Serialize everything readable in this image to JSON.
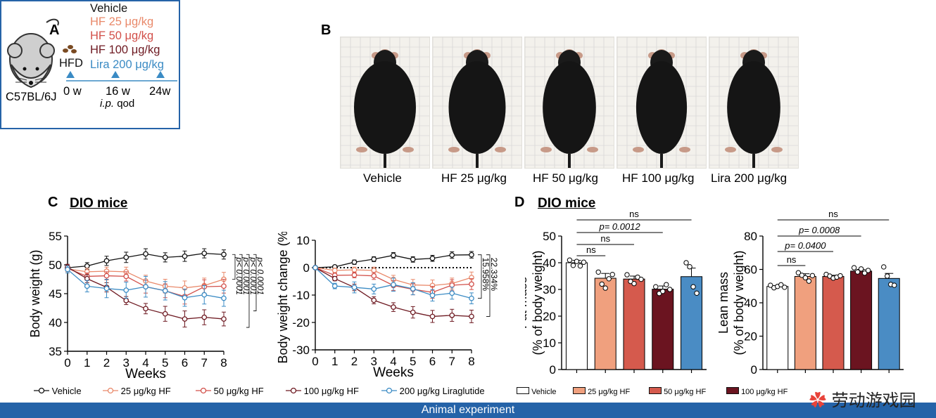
{
  "panels": {
    "A": "A",
    "B": "B",
    "C": "C",
    "D": "D"
  },
  "panel_a": {
    "strain": "C57BL/6J",
    "diet": "HFD",
    "groups": [
      {
        "label": "Vehicle",
        "color": "#111111"
      },
      {
        "label": "HF 25 μg/kg",
        "color": "#e9896a"
      },
      {
        "label": "HF 50 μg/kg",
        "color": "#d2504a"
      },
      {
        "label": "HF 100 μg/kg",
        "color": "#6e1a22"
      },
      {
        "label": "Lira 200 μg/kg",
        "color": "#3b8bc4"
      }
    ],
    "timeline": {
      "t0": "0 w",
      "t1": "16 w",
      "t2": "24w",
      "route": "i.p.",
      "freq": "qod"
    },
    "banner": "Animal experiment"
  },
  "panel_b": {
    "labels": [
      "Vehicle",
      "HF 25 μg/kg",
      "HF 50 μg/kg",
      "HF 100 μg/kg",
      "Lira 200 μg/kg"
    ]
  },
  "panel_c": {
    "title": "DIO mice"
  },
  "panel_d": {
    "title": "DIO mice"
  },
  "legend_c": [
    "Vehicle",
    "25 μg/kg HF",
    "50 μg/kg HF",
    "100 μg/kg HF",
    "200 μg/kg Liraglutide"
  ],
  "legend_d": [
    "Vehicle",
    "25 μg/kg HF",
    "50 μg/kg HF",
    "100 μg/kg HF"
  ],
  "colors": {
    "vehicle": "#111111",
    "hf25": "#e9896a",
    "hf50": "#d2504a",
    "hf100": "#6e1a22",
    "lira": "#3b8bc4",
    "bar25": "#f0a07e",
    "bar50": "#d55a4d",
    "bar100": "#6b1420",
    "barlira": "#4a8cc4"
  },
  "watermark": "劳动游戏园",
  "chart_data": [
    {
      "type": "line",
      "xlabel": "Weeks",
      "ylabel": "Body weight (g)",
      "x": [
        0,
        1,
        2,
        3,
        4,
        5,
        6,
        7,
        8
      ],
      "xlim": [
        0,
        8
      ],
      "ylim": [
        35,
        55
      ],
      "yticks": [
        35,
        40,
        45,
        50,
        55
      ],
      "series": [
        {
          "name": "Vehicle",
          "values": [
            49.5,
            49.8,
            50.7,
            51.3,
            51.9,
            51.3,
            51.5,
            52.0,
            51.8
          ],
          "err": [
            0.4,
            0.6,
            0.8,
            0.9,
            0.9,
            0.8,
            0.9,
            0.8,
            0.8
          ]
        },
        {
          "name": "25 μg/kg HF",
          "values": [
            49.3,
            48.8,
            48.9,
            48.8,
            47.2,
            46.3,
            46.0,
            46.4,
            47.5
          ],
          "err": [
            0.5,
            0.6,
            0.7,
            0.8,
            1.0,
            1.2,
            1.2,
            1.3,
            1.2
          ]
        },
        {
          "name": "50 μg/kg HF",
          "values": [
            49.4,
            48.0,
            48.1,
            48.0,
            46.2,
            45.5,
            44.5,
            46.2,
            46.3
          ],
          "err": [
            0.5,
            0.6,
            0.7,
            0.8,
            1.1,
            1.2,
            1.3,
            1.2,
            1.2
          ]
        },
        {
          "name": "100 μg/kg HF",
          "values": [
            49.6,
            47.6,
            46.1,
            43.8,
            42.4,
            41.5,
            40.6,
            40.9,
            40.6
          ],
          "err": [
            0.5,
            0.7,
            0.8,
            0.7,
            0.9,
            1.3,
            1.4,
            1.3,
            1.2
          ]
        },
        {
          "name": "200 μg/kg Liraglutide",
          "values": [
            49.2,
            46.3,
            45.9,
            45.6,
            46.2,
            45.5,
            44.3,
            44.8,
            44.2
          ],
          "err": [
            0.6,
            1.0,
            1.6,
            1.4,
            1.8,
            1.6,
            1.5,
            1.6,
            1.4
          ]
        }
      ],
      "annotations": [
        "p< 0.0001",
        "p< 0.0001",
        "p< 0.0001",
        "p< 0.0001"
      ]
    },
    {
      "type": "line",
      "xlabel": "Weeks",
      "ylabel": "Body weight change (%)",
      "x": [
        0,
        1,
        2,
        3,
        4,
        5,
        6,
        7,
        8
      ],
      "xlim": [
        0,
        8
      ],
      "ylim": [
        -30,
        10
      ],
      "yticks": [
        -30,
        -20,
        -10,
        0,
        10
      ],
      "series": [
        {
          "name": "Vehicle",
          "values": [
            0,
            0.3,
            2.0,
            3.1,
            4.5,
            3.0,
            3.4,
            4.6,
            4.7
          ],
          "err": [
            0,
            0.5,
            0.8,
            0.9,
            1.0,
            1.0,
            1.1,
            1.2,
            1.2
          ]
        },
        {
          "name": "25 μg/kg HF",
          "values": [
            0,
            -1.0,
            -0.8,
            -1.0,
            -4.3,
            -6.3,
            -6.5,
            -5.8,
            -3.6
          ],
          "err": [
            0,
            0.8,
            1.0,
            1.2,
            1.5,
            2.0,
            2.0,
            2.0,
            2.0
          ]
        },
        {
          "name": "50 μg/kg HF",
          "values": [
            0,
            -2.8,
            -2.7,
            -3.0,
            -6.5,
            -7.9,
            -9.0,
            -6.4,
            -6.0
          ],
          "err": [
            0,
            0.8,
            1.0,
            1.3,
            1.8,
            2.0,
            2.2,
            2.0,
            2.0
          ]
        },
        {
          "name": "100 μg/kg HF",
          "values": [
            0,
            -4.0,
            -7.2,
            -11.9,
            -14.4,
            -16.3,
            -17.8,
            -17.4,
            -17.8
          ],
          "err": [
            0,
            0.8,
            1.2,
            1.3,
            1.6,
            2.1,
            2.2,
            2.2,
            2.3
          ]
        },
        {
          "name": "200 μg/kg Liraglutide",
          "values": [
            0,
            -6.7,
            -7.2,
            -7.8,
            -6.2,
            -7.7,
            -10.1,
            -9.3,
            -11.2
          ],
          "err": [
            0,
            1.0,
            2.0,
            1.8,
            2.4,
            2.2,
            2.1,
            2.2,
            2.0
          ]
        }
      ],
      "annotations": [
        "15.958%",
        "22.334%"
      ]
    },
    {
      "type": "bar",
      "ylabel": "Fat mass\n(% of body weight)",
      "categories": [
        "Vehicle",
        "25 μg/kg HF",
        "50 μg/kg HF",
        "100 μg/kg HF",
        "200 μg/kg Liraglutide"
      ],
      "values": [
        40.0,
        34.2,
        33.9,
        30.1,
        34.8
      ],
      "err": [
        0.9,
        1.8,
        1.1,
        1.2,
        3.2
      ],
      "points": [
        [
          41.0,
          39.0,
          40.5,
          38.8,
          40.2
        ],
        [
          36.5,
          32.0,
          30.5,
          34.0,
          35.6
        ],
        [
          35.5,
          33.0,
          32.2,
          34.6,
          33.8
        ],
        [
          31.0,
          28.5,
          29.3,
          31.8,
          30.0
        ],
        [
          40.0,
          38.5,
          31.0,
          28.6
        ]
      ],
      "ylim": [
        0,
        50
      ],
      "yticks": [
        0,
        10,
        20,
        30,
        40,
        50
      ],
      "annotations": [
        "ns",
        "p= 0.0012",
        "ns",
        "ns"
      ]
    },
    {
      "type": "bar",
      "ylabel": "Lean mass\n(% of body weight)",
      "categories": [
        "Vehicle",
        "25 μg/kg HF",
        "50 μg/kg HF",
        "100 μg/kg HF",
        "200 μg/kg Liraglutide"
      ],
      "values": [
        49.8,
        55.8,
        55.8,
        59.0,
        54.6
      ],
      "err": [
        0.5,
        1.6,
        0.7,
        1.0,
        3.0
      ],
      "points": [
        [
          50.5,
          49.0,
          49.8,
          50.8,
          49.3
        ],
        [
          58.0,
          56.5,
          55.0,
          53.0,
          56.3
        ],
        [
          57.0,
          56.0,
          54.8,
          55.4,
          56.2
        ],
        [
          61.0,
          58.5,
          60.3,
          57.8,
          59.4
        ],
        [
          61.5,
          56.0,
          51.0,
          50.5
        ]
      ],
      "ylim": [
        0,
        80
      ],
      "yticks": [
        0,
        20,
        40,
        60,
        80
      ],
      "annotations": [
        "ns",
        "p= 0.0008",
        "p= 0.0400",
        "ns"
      ]
    }
  ]
}
